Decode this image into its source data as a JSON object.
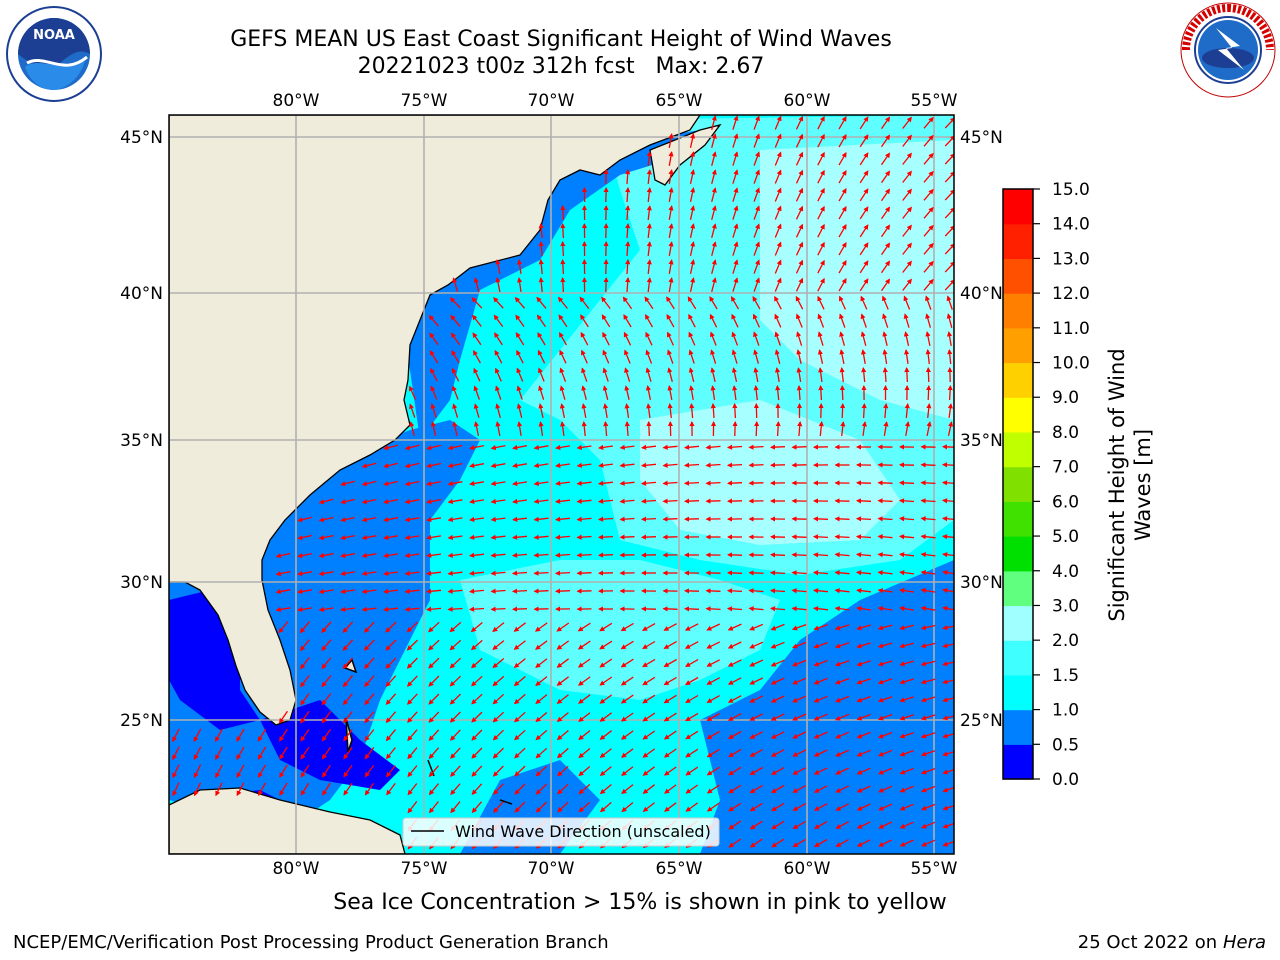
{
  "title": {
    "line1": "GEFS MEAN US East Coast Significant Height of Wind Waves",
    "line2": "20221023 t00z 312h fcst   Max: 2.67"
  },
  "logos": {
    "left": "NOAA",
    "right": "NATIONAL WEATHER SERVICE"
  },
  "map": {
    "lon_labels": [
      "80°W",
      "75°W",
      "70°W",
      "65°W",
      "60°W",
      "55°W"
    ],
    "lat_labels": [
      "45°N",
      "40°N",
      "35°N",
      "30°N",
      "25°N"
    ],
    "legend_label": "Wind Wave Direction (unscaled)",
    "arrow_color": "#ff0000",
    "land_color": "#efecdc"
  },
  "colorbar": {
    "label_line1": "Significant Height of Wind",
    "label_line2": "Waves [m]",
    "ticks": [
      "0.0",
      "0.5",
      "1.0",
      "1.5",
      "2.0",
      "3.0",
      "4.0",
      "5.0",
      "6.0",
      "7.0",
      "8.0",
      "9.0",
      "10.0",
      "11.0",
      "12.0",
      "13.0",
      "14.0",
      "15.0"
    ],
    "colors": [
      "#0000ff",
      "#0080ff",
      "#00ffff",
      "#40ffff",
      "#a0ffff",
      "#60ff80",
      "#00e000",
      "#40e000",
      "#80e000",
      "#c0ff00",
      "#ffff00",
      "#ffd000",
      "#ffa000",
      "#ff8000",
      "#ff5000",
      "#ff2000",
      "#ff0000"
    ]
  },
  "notes": {
    "sea_ice": "Sea Ice Concentration > 15% is shown in pink to yellow",
    "footer_left": "NCEP/EMC/Verification Post Processing Product Generation Branch",
    "footer_right_date": "25 Oct 2022 on ",
    "footer_right_host": "Hera"
  }
}
